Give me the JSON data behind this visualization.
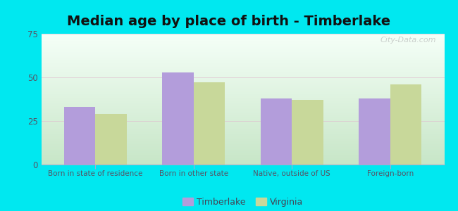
{
  "title": "Median age by place of birth - Timberlake",
  "categories": [
    "Born in state of residence",
    "Born in other state",
    "Native, outside of US",
    "Foreign-born"
  ],
  "timberlake_values": [
    33,
    53,
    38,
    38
  ],
  "virginia_values": [
    29,
    47,
    37,
    46
  ],
  "timberlake_color": "#b39ddb",
  "virginia_color": "#c8d89a",
  "ylim": [
    0,
    75
  ],
  "yticks": [
    0,
    25,
    50,
    75
  ],
  "background_outer": "#00e8f0",
  "background_top_color": "#f0fff4",
  "background_bottom_color": "#c8e6c9",
  "grid_color": "#e0b8cc",
  "legend_timberlake": "Timberlake",
  "legend_virginia": "Virginia",
  "title_fontsize": 14,
  "bar_width": 0.32,
  "watermark": "City-Data.com"
}
